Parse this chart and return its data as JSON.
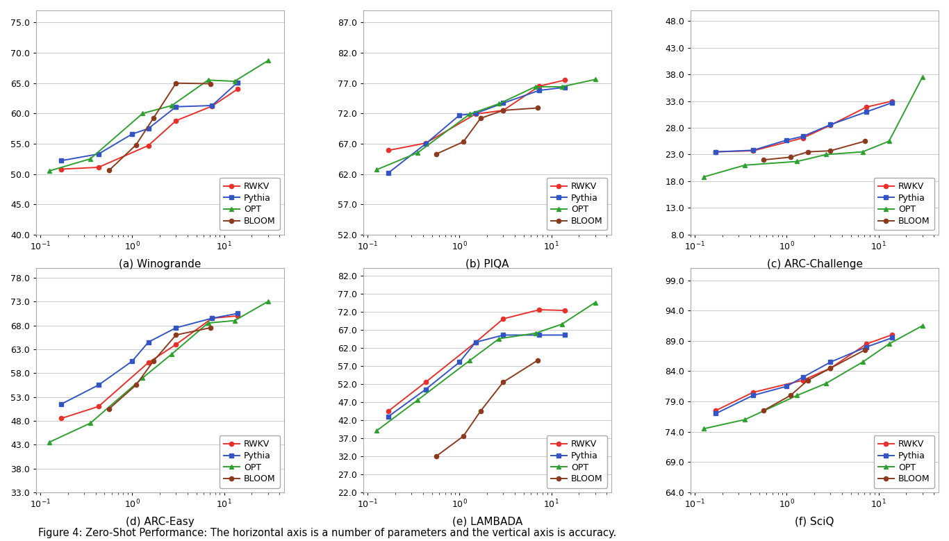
{
  "subplots": [
    {
      "title": "(a) Winogrande",
      "ylim": [
        40.0,
        77.0
      ],
      "yticks": [
        40.0,
        45.0,
        50.0,
        55.0,
        60.0,
        65.0,
        70.0,
        75.0
      ],
      "series": {
        "RWKV": {
          "x": [
            0.169,
            0.43,
            1.5,
            3.0,
            7.4,
            14.0
          ],
          "y": [
            50.8,
            51.1,
            54.7,
            58.8,
            61.2,
            64.0
          ],
          "color": "#e8302a",
          "marker": "o"
        },
        "Pythia": {
          "x": [
            0.169,
            0.43,
            1.0,
            1.5,
            3.0,
            7.4,
            14.0
          ],
          "y": [
            52.2,
            53.3,
            56.6,
            57.5,
            61.1,
            61.3,
            65.1
          ],
          "color": "#3354c4",
          "marker": "s"
        },
        "OPT": {
          "x": [
            0.125,
            0.35,
            1.3,
            2.7,
            6.7,
            13.0,
            30.0
          ],
          "y": [
            50.5,
            52.5,
            60.0,
            61.3,
            65.5,
            65.3,
            68.7
          ],
          "color": "#2da02d",
          "marker": "^"
        },
        "BLOOM": {
          "x": [
            0.56,
            1.1,
            1.7,
            3.0,
            7.1
          ],
          "y": [
            50.6,
            54.8,
            59.2,
            65.0,
            64.9
          ],
          "color": "#8b3a1e",
          "marker": "o"
        }
      }
    },
    {
      "title": "(b) PIQA",
      "ylim": [
        52.0,
        89.0
      ],
      "yticks": [
        52.0,
        57.0,
        62.0,
        67.0,
        72.0,
        77.0,
        82.0,
        87.0
      ],
      "series": {
        "RWKV": {
          "x": [
            0.169,
            0.43,
            1.5,
            3.0,
            7.4,
            14.0
          ],
          "y": [
            65.9,
            67.1,
            71.9,
            72.5,
            76.5,
            77.5
          ],
          "color": "#e8302a",
          "marker": "o"
        },
        "Pythia": {
          "x": [
            0.169,
            0.43,
            1.0,
            1.5,
            3.0,
            7.4,
            14.0
          ],
          "y": [
            62.2,
            67.0,
            71.7,
            72.0,
            73.7,
            75.8,
            76.3
          ],
          "color": "#3354c4",
          "marker": "s"
        },
        "OPT": {
          "x": [
            0.125,
            0.35,
            1.3,
            2.7,
            6.7,
            13.0,
            30.0
          ],
          "y": [
            62.7,
            65.5,
            71.9,
            73.6,
            76.4,
            76.4,
            77.6
          ],
          "color": "#2da02d",
          "marker": "^"
        },
        "BLOOM": {
          "x": [
            0.56,
            1.1,
            1.7,
            3.0,
            7.1
          ],
          "y": [
            65.3,
            67.3,
            71.2,
            72.5,
            72.9
          ],
          "color": "#8b3a1e",
          "marker": "o"
        }
      }
    },
    {
      "title": "(c) ARC-Challenge",
      "ylim": [
        8.0,
        50.0
      ],
      "yticks": [
        8.0,
        13.0,
        18.0,
        23.0,
        28.0,
        33.0,
        38.0,
        43.0,
        48.0
      ],
      "series": {
        "RWKV": {
          "x": [
            0.169,
            0.43,
            1.5,
            3.0,
            7.4,
            14.0
          ],
          "y": [
            23.5,
            23.7,
            26.1,
            28.5,
            31.9,
            33.0
          ],
          "color": "#e8302a",
          "marker": "o"
        },
        "Pythia": {
          "x": [
            0.169,
            0.43,
            1.0,
            1.5,
            3.0,
            7.4,
            14.0
          ],
          "y": [
            23.5,
            23.8,
            25.7,
            26.4,
            28.6,
            31.0,
            32.7
          ],
          "color": "#3354c4",
          "marker": "s"
        },
        "OPT": {
          "x": [
            0.125,
            0.35,
            1.3,
            2.7,
            6.7,
            13.0,
            30.0
          ],
          "y": [
            18.8,
            21.0,
            21.7,
            23.0,
            23.5,
            25.5,
            37.5
          ],
          "color": "#2da02d",
          "marker": "^"
        },
        "BLOOM": {
          "x": [
            0.56,
            1.1,
            1.7,
            3.0,
            7.1
          ],
          "y": [
            22.0,
            22.5,
            23.5,
            23.7,
            25.5
          ],
          "color": "#8b3a1e",
          "marker": "o"
        }
      }
    },
    {
      "title": "(d) ARC-Easy",
      "ylim": [
        33.0,
        80.0
      ],
      "yticks": [
        33.0,
        38.0,
        43.0,
        48.0,
        53.0,
        58.0,
        63.0,
        68.0,
        73.0,
        78.0
      ],
      "series": {
        "RWKV": {
          "x": [
            0.169,
            0.43,
            1.5,
            3.0,
            7.4,
            14.0
          ],
          "y": [
            48.5,
            51.0,
            60.2,
            64.0,
            69.5,
            70.0
          ],
          "color": "#e8302a",
          "marker": "o"
        },
        "Pythia": {
          "x": [
            0.169,
            0.43,
            1.0,
            1.5,
            3.0,
            7.4,
            14.0
          ],
          "y": [
            51.5,
            55.5,
            60.5,
            64.5,
            67.5,
            69.5,
            70.5
          ],
          "color": "#3354c4",
          "marker": "s"
        },
        "OPT": {
          "x": [
            0.125,
            0.35,
            1.3,
            2.7,
            6.7,
            13.0,
            30.0
          ],
          "y": [
            43.5,
            47.5,
            57.0,
            62.0,
            68.5,
            69.0,
            73.0
          ],
          "color": "#2da02d",
          "marker": "^"
        },
        "BLOOM": {
          "x": [
            0.56,
            1.1,
            1.7,
            3.0,
            7.1
          ],
          "y": [
            50.5,
            55.5,
            60.5,
            66.0,
            67.5
          ],
          "color": "#8b3a1e",
          "marker": "o"
        }
      }
    },
    {
      "title": "(e) LAMBADA",
      "ylim": [
        22.0,
        84.0
      ],
      "yticks": [
        22.0,
        27.0,
        32.0,
        37.0,
        42.0,
        47.0,
        52.0,
        57.0,
        62.0,
        67.0,
        72.0,
        77.0,
        82.0
      ],
      "series": {
        "RWKV": {
          "x": [
            0.169,
            0.43,
            1.5,
            3.0,
            7.4,
            14.0
          ],
          "y": [
            44.5,
            52.5,
            63.5,
            70.0,
            72.5,
            72.3
          ],
          "color": "#e8302a",
          "marker": "o"
        },
        "Pythia": {
          "x": [
            0.169,
            0.43,
            1.0,
            1.5,
            3.0,
            7.4,
            14.0
          ],
          "y": [
            43.0,
            50.5,
            58.0,
            63.5,
            65.5,
            65.5,
            65.5
          ],
          "color": "#3354c4",
          "marker": "s"
        },
        "OPT": {
          "x": [
            0.125,
            0.35,
            1.3,
            2.7,
            6.7,
            13.0,
            30.0
          ],
          "y": [
            39.0,
            47.5,
            58.5,
            64.5,
            66.0,
            68.5,
            74.5
          ],
          "color": "#2da02d",
          "marker": "^"
        },
        "BLOOM": {
          "x": [
            0.56,
            1.1,
            1.7,
            3.0,
            7.1
          ],
          "y": [
            32.0,
            37.5,
            44.5,
            52.5,
            58.5
          ],
          "color": "#8b3a1e",
          "marker": "o"
        }
      }
    },
    {
      "title": "(f) SciQ",
      "ylim": [
        64.0,
        101.0
      ],
      "yticks": [
        64.0,
        69.0,
        74.0,
        79.0,
        84.0,
        89.0,
        94.0,
        99.0
      ],
      "series": {
        "RWKV": {
          "x": [
            0.169,
            0.43,
            1.5,
            3.0,
            7.4,
            14.0
          ],
          "y": [
            77.5,
            80.5,
            82.5,
            84.5,
            88.5,
            90.0
          ],
          "color": "#e8302a",
          "marker": "o"
        },
        "Pythia": {
          "x": [
            0.169,
            0.43,
            1.0,
            1.5,
            3.0,
            7.4,
            14.0
          ],
          "y": [
            77.0,
            80.0,
            81.5,
            83.0,
            85.5,
            88.0,
            89.5
          ],
          "color": "#3354c4",
          "marker": "s"
        },
        "OPT": {
          "x": [
            0.125,
            0.35,
            1.3,
            2.7,
            6.7,
            13.0,
            30.0
          ],
          "y": [
            74.5,
            76.0,
            80.0,
            82.0,
            85.5,
            88.5,
            91.5
          ],
          "color": "#2da02d",
          "marker": "^"
        },
        "BLOOM": {
          "x": [
            0.56,
            1.1,
            1.7,
            3.0,
            7.1
          ],
          "y": [
            77.5,
            80.0,
            82.5,
            84.5,
            87.5
          ],
          "color": "#8b3a1e",
          "marker": "o"
        }
      }
    }
  ],
  "caption": "Figure 4: Zero-Shot Performance: The horizontal axis is a number of parameters and the vertical axis is accuracy.",
  "background_color": "#ffffff",
  "grid_color": "#cccccc",
  "legend_order": [
    "RWKV",
    "Pythia",
    "OPT",
    "BLOOM"
  ]
}
